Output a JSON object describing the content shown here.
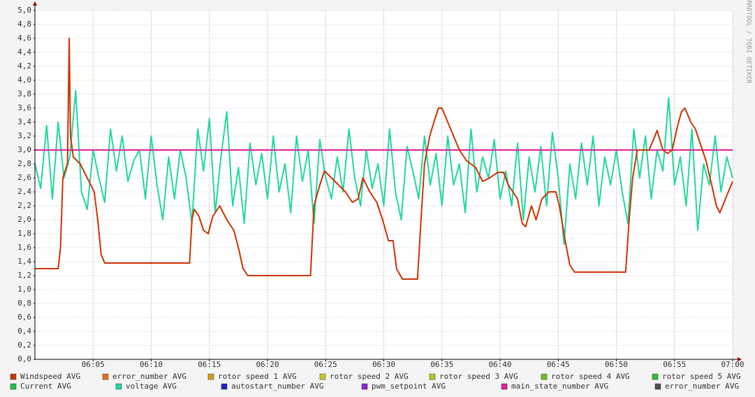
{
  "chart_data": {
    "type": "line",
    "watermark": "RRDTOOL / TOBI OETIKER",
    "xlim": [
      0,
      60
    ],
    "ylim": [
      0,
      5
    ],
    "xticks": [
      {
        "value": 5,
        "label": "06:05"
      },
      {
        "value": 10,
        "label": "06:10"
      },
      {
        "value": 15,
        "label": "06:15"
      },
      {
        "value": 20,
        "label": "06:20"
      },
      {
        "value": 25,
        "label": "06:25"
      },
      {
        "value": 30,
        "label": "06:30"
      },
      {
        "value": 35,
        "label": "06:35"
      },
      {
        "value": 40,
        "label": "06:40"
      },
      {
        "value": 45,
        "label": "06:45"
      },
      {
        "value": 50,
        "label": "06:50"
      },
      {
        "value": 55,
        "label": "06:55"
      },
      {
        "value": 60,
        "label": "07:00"
      }
    ],
    "yticks": [
      {
        "value": 0,
        "label": "0,0"
      },
      {
        "value": 0.2,
        "label": "0,2"
      },
      {
        "value": 0.4,
        "label": "0,4"
      },
      {
        "value": 0.6,
        "label": "0,6"
      },
      {
        "value": 0.8,
        "label": "0,8"
      },
      {
        "value": 1,
        "label": "1,0"
      },
      {
        "value": 1.2,
        "label": "1,2"
      },
      {
        "value": 1.4,
        "label": "1,4"
      },
      {
        "value": 1.6,
        "label": "1,6"
      },
      {
        "value": 1.8,
        "label": "1,8"
      },
      {
        "value": 2,
        "label": "2,0"
      },
      {
        "value": 2.2,
        "label": "2,2"
      },
      {
        "value": 2.4,
        "label": "2,4"
      },
      {
        "value": 2.6,
        "label": "2,6"
      },
      {
        "value": 2.8,
        "label": "2,8"
      },
      {
        "value": 3,
        "label": "3,0"
      },
      {
        "value": 3.2,
        "label": "3,2"
      },
      {
        "value": 3.4,
        "label": "3,4"
      },
      {
        "value": 3.6,
        "label": "3,6"
      },
      {
        "value": 3.8,
        "label": "3,8"
      },
      {
        "value": 4,
        "label": "4,0"
      },
      {
        "value": 4.2,
        "label": "4,2"
      },
      {
        "value": 4.4,
        "label": "4,4"
      },
      {
        "value": 4.6,
        "label": "4,6"
      },
      {
        "value": 4.8,
        "label": "4,8"
      },
      {
        "value": 5,
        "label": "5,0"
      }
    ],
    "grid": true,
    "series": [
      {
        "name": "Windspeed AVG",
        "color": "#cc3300",
        "x": [
          0,
          2.0,
          2.2,
          2.4,
          2.8,
          2.95,
          3.06,
          3.3,
          3.9,
          4.5,
          5.1,
          5.4,
          5.7,
          6.0,
          13.3,
          13.5,
          13.7,
          14.1,
          14.5,
          14.9,
          15.3,
          15.9,
          16.5,
          17.1,
          17.5,
          17.9,
          18.3,
          23.7,
          24.0,
          24.5,
          24.9,
          25.5,
          26.1,
          26.7,
          27.3,
          27.8,
          28.2,
          28.8,
          29.4,
          29.9,
          30.4,
          30.8,
          31.1,
          31.6,
          32.9,
          33.2,
          33.5,
          33.95,
          34.4,
          34.7,
          35.0,
          35.5,
          36.0,
          36.5,
          37.1,
          37.9,
          38.5,
          39.1,
          39.8,
          40.3,
          40.7,
          41.5,
          41.9,
          42.2,
          42.7,
          43.1,
          43.6,
          44.2,
          44.8,
          45.1,
          45.6,
          46.0,
          46.4,
          50.8,
          51.1,
          51.4,
          51.8,
          52.3,
          52.8,
          53.2,
          53.5,
          54.0,
          54.4,
          54.8,
          55.2,
          55.6,
          55.9,
          56.4,
          56.8,
          57.2,
          57.7,
          58.2,
          58.6,
          58.9,
          59.5,
          60
        ],
        "values": [
          1.3,
          1.3,
          1.6,
          2.6,
          2.8,
          4.6,
          3.2,
          2.9,
          2.8,
          2.6,
          2.4,
          2.0,
          1.5,
          1.38,
          1.38,
          2.0,
          2.15,
          2.05,
          1.85,
          1.8,
          2.05,
          2.2,
          2.0,
          1.85,
          1.6,
          1.3,
          1.2,
          1.2,
          2.2,
          2.5,
          2.7,
          2.6,
          2.5,
          2.4,
          2.25,
          2.3,
          2.6,
          2.4,
          2.25,
          2.0,
          1.7,
          1.7,
          1.3,
          1.15,
          1.15,
          2.0,
          2.8,
          3.2,
          3.45,
          3.6,
          3.6,
          3.4,
          3.2,
          3.0,
          2.85,
          2.75,
          2.55,
          2.6,
          2.68,
          2.68,
          2.5,
          2.3,
          1.95,
          1.9,
          2.2,
          2.0,
          2.3,
          2.4,
          2.4,
          2.2,
          1.7,
          1.35,
          1.25,
          1.25,
          2.0,
          2.6,
          3.0,
          3.0,
          3.0,
          3.15,
          3.28,
          3.0,
          2.95,
          3.0,
          3.3,
          3.55,
          3.6,
          3.4,
          3.3,
          3.1,
          2.85,
          2.5,
          2.2,
          2.1,
          2.35,
          2.55
        ]
      },
      {
        "name": "error_number AVG",
        "color": "#e07020"
      },
      {
        "name": "rotor speed 1 AVG",
        "color": "#d4a017"
      },
      {
        "name": "rotor speed 2 AVG",
        "color": "#c8c820"
      },
      {
        "name": "rotor speed 3 AVG",
        "color": "#a8d020"
      },
      {
        "name": "rotor speed 4 AVG",
        "color": "#70c020"
      },
      {
        "name": "rotor speed 5 AVG",
        "color": "#30c030"
      },
      {
        "name": "Current AVG",
        "color": "#20c050"
      },
      {
        "name": "voltage AVG",
        "color": "#20d8a0",
        "x": [
          0,
          0.5,
          1,
          1.5,
          2,
          2.5,
          3,
          3.5,
          4,
          4.5,
          5,
          5.5,
          6,
          6.5,
          7,
          7.5,
          8,
          8.5,
          9,
          9.5,
          10,
          10.5,
          11,
          11.5,
          12,
          12.5,
          13,
          13.5,
          14,
          14.5,
          15,
          15.5,
          16,
          16.5,
          17,
          17.5,
          18,
          18.5,
          19,
          19.5,
          20,
          20.5,
          21,
          21.5,
          22,
          22.5,
          23,
          23.5,
          24,
          24.5,
          25,
          25.5,
          26,
          26.5,
          27,
          27.5,
          28,
          28.5,
          29,
          29.5,
          30,
          30.5,
          31,
          31.5,
          32,
          32.5,
          33,
          33.5,
          34,
          34.5,
          35,
          35.5,
          36,
          36.5,
          37,
          37.5,
          38,
          38.5,
          39,
          39.5,
          40,
          40.5,
          41,
          41.5,
          42,
          42.5,
          43,
          43.5,
          44,
          44.5,
          45,
          45.5,
          46,
          46.5,
          47,
          47.5,
          48,
          48.5,
          49,
          49.5,
          50,
          50.5,
          51,
          51.5,
          52,
          52.5,
          53,
          53.5,
          54,
          54.5,
          55,
          55.5,
          56,
          56.5,
          57,
          57.5,
          58,
          58.5,
          59,
          59.5,
          60
        ],
        "values": [
          2.8,
          2.45,
          3.35,
          2.3,
          3.4,
          2.6,
          2.9,
          3.85,
          2.4,
          2.15,
          3.0,
          2.6,
          2.25,
          3.3,
          2.7,
          3.2,
          2.55,
          2.85,
          3.0,
          2.3,
          3.2,
          2.5,
          2.0,
          2.9,
          2.3,
          3.0,
          2.6,
          1.95,
          3.3,
          2.7,
          3.45,
          2.1,
          2.9,
          3.55,
          2.2,
          2.75,
          1.95,
          3.1,
          2.5,
          2.95,
          2.3,
          3.2,
          2.4,
          2.8,
          2.1,
          3.2,
          2.55,
          3.0,
          1.95,
          3.15,
          2.6,
          2.3,
          2.9,
          2.4,
          3.3,
          2.6,
          2.2,
          3.0,
          2.45,
          2.8,
          2.2,
          3.3,
          2.4,
          2.0,
          3.05,
          2.7,
          2.3,
          3.2,
          2.5,
          2.95,
          2.2,
          3.2,
          2.5,
          2.8,
          2.1,
          3.3,
          2.4,
          2.9,
          2.6,
          3.15,
          2.3,
          2.7,
          2.2,
          3.1,
          2.0,
          2.9,
          2.4,
          3.05,
          2.2,
          3.25,
          2.6,
          1.65,
          2.8,
          2.3,
          3.1,
          2.5,
          3.2,
          2.2,
          2.9,
          2.5,
          3.0,
          2.4,
          1.95,
          3.3,
          2.6,
          3.2,
          2.3,
          3.0,
          2.7,
          3.75,
          2.5,
          2.9,
          2.2,
          3.3,
          1.85,
          2.8,
          2.5,
          3.2,
          2.4,
          2.9,
          2.6
        ]
      },
      {
        "name": "autostart_number AVG",
        "color": "#2020cc"
      },
      {
        "name": "pwm_setpoint AVG",
        "color": "#9020d0"
      },
      {
        "name": "main_state_number AVG",
        "color": "#e020a0",
        "x": [
          0,
          60
        ],
        "values": [
          3,
          3
        ]
      },
      {
        "name": "error_number AVG",
        "color": "#505050"
      }
    ]
  }
}
